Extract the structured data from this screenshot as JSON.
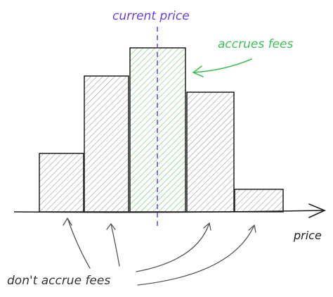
{
  "labels": {
    "current_price": "current price",
    "accrues_fees": "accrues fees",
    "price_axis": "price",
    "dont_accrue": "don't accrue fees"
  },
  "colors": {
    "ink": "#1e1e1e",
    "bar_fill": "#c9c9c9",
    "active_fill": "#b2f2bb",
    "active_stroke": "#2f9e44",
    "accent_green": "#40c057",
    "current_price": "#6741d9",
    "arrow_gray": "#555555"
  },
  "bars": [
    {
      "id": "bar-1",
      "active": false
    },
    {
      "id": "bar-2",
      "active": false
    },
    {
      "id": "bar-3",
      "active": true
    },
    {
      "id": "bar-4",
      "active": false
    },
    {
      "id": "bar-5",
      "active": false
    }
  ]
}
